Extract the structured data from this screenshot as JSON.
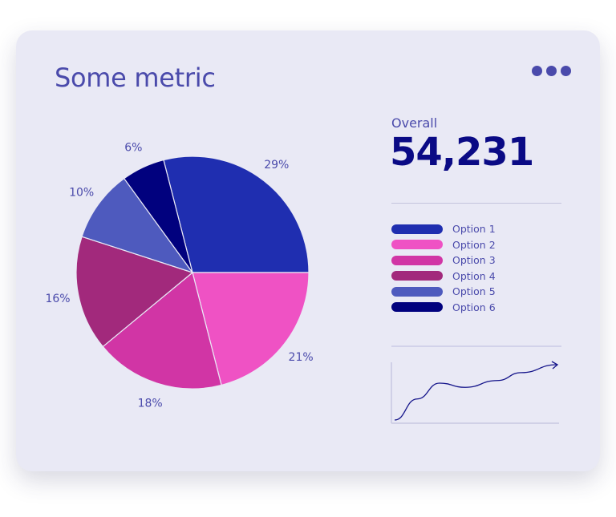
{
  "card": {
    "title": "Some metric",
    "menu_icon": "more-horizontal-icon"
  },
  "summary": {
    "label": "Overall",
    "value": "54,231"
  },
  "colors": {
    "accent": "#4a4aab",
    "value": "#0a0a85",
    "background": "#e9e9f5"
  },
  "chart_data": [
    {
      "type": "pie",
      "categories": [
        "Option 1",
        "Option 2",
        "Option 3",
        "Option 4",
        "Option 5",
        "Option 6"
      ],
      "values": [
        29,
        21,
        18,
        16,
        10,
        6
      ],
      "labels": [
        "29%",
        "21%",
        "18%",
        "16%",
        "10%",
        "6%"
      ],
      "colors": [
        "#1f2eb0",
        "#ef52c4",
        "#d135a5",
        "#a2297c",
        "#4e5abe",
        "#01017e"
      ],
      "legend": "right"
    },
    {
      "type": "line",
      "description_trend": "upward",
      "y": [
        0,
        4,
        7,
        6.2,
        7.5,
        9,
        10.5
      ],
      "color": "#14148a"
    }
  ]
}
